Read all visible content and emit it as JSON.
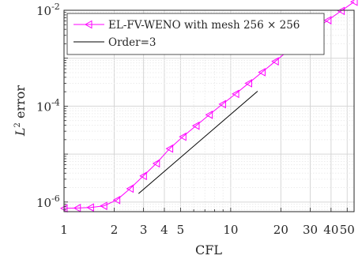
{
  "chart_data": {
    "type": "line",
    "xscale": "log",
    "yscale": "log",
    "xlim": [
      1,
      55
    ],
    "ylim": [
      6.3e-07,
      0.01
    ],
    "xlabel": "CFL",
    "ylabel_main": "L",
    "ylabel_sup": "2",
    "ylabel_rest": " error",
    "grid": true,
    "minor_grid": true,
    "legend_position": "top-left",
    "x_ticks": [
      {
        "value": 1,
        "label": "1"
      },
      {
        "value": 2,
        "label": "2"
      },
      {
        "value": 3,
        "label": "3"
      },
      {
        "value": 4,
        "label": "4"
      },
      {
        "value": 5,
        "label": "5"
      },
      {
        "value": 10,
        "label": "10"
      },
      {
        "value": 20,
        "label": "20"
      },
      {
        "value": 30,
        "label": "30"
      },
      {
        "value": 40,
        "label": "40"
      },
      {
        "value": 50,
        "label": "50"
      }
    ],
    "y_ticks": [
      {
        "value": 1e-06,
        "base": "10",
        "exp": "-6"
      },
      {
        "value": 0.0001,
        "base": "10",
        "exp": "-4"
      },
      {
        "value": 0.01,
        "base": "10",
        "exp": "-2"
      }
    ],
    "series": [
      {
        "name": "EL-FV-WENO with mesh 256 × 256",
        "color": "#ff00ff",
        "marker": "left-triangle",
        "x": [
          1,
          1.2,
          1.44,
          1.73,
          2.07,
          2.49,
          2.99,
          3.58,
          4.3,
          5.16,
          6.19,
          7.43,
          8.92,
          10.7,
          12.8,
          15.4,
          18.5,
          22.2,
          26.6,
          31.9,
          38.3,
          46,
          55
        ],
        "y": [
          7.4e-07,
          7.5e-07,
          7.7e-07,
          8.3e-07,
          1.1e-06,
          1.9e-06,
          3.5e-06,
          6.4e-06,
          1.3e-05,
          2.3e-05,
          3.9e-05,
          6.6e-05,
          0.00011,
          0.00018,
          0.0003,
          0.00051,
          0.00086,
          0.00145,
          0.0024,
          0.0039,
          0.0062,
          0.0097,
          0.015
        ]
      },
      {
        "name": "Order=3",
        "color": "#000000",
        "marker": "none",
        "x": [
          2.8,
          14.5
        ],
        "y": [
          1.5e-06,
          0.000205
        ]
      }
    ],
    "legend": [
      {
        "label": "EL-FV-WENO with mesh 256 × 256",
        "color": "#ff00ff",
        "marker": "left-triangle"
      },
      {
        "label": "Order=3",
        "color": "#000000",
        "marker": "none"
      }
    ]
  }
}
